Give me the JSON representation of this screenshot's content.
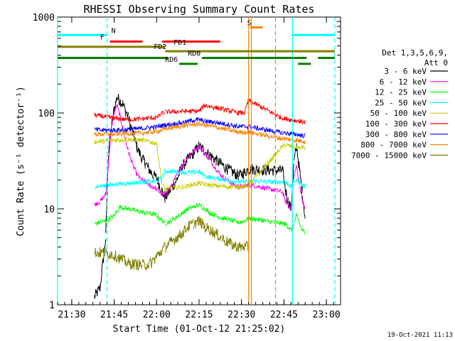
{
  "chart_data": {
    "type": "line",
    "title": "RHESSI Observing Summary Count Rates",
    "xlabel": "Start Time (01-Oct-12 21:25:02)",
    "ylabel": "Count Rate (s⁻¹ detector⁻¹)",
    "x_unit": "minutes since 21:25:02",
    "xlim": [
      0,
      100
    ],
    "ylim": [
      1,
      1000
    ],
    "y_scale": "log",
    "x_ticks": [
      {
        "x": 5,
        "label": "21:30"
      },
      {
        "x": 20,
        "label": "21:45"
      },
      {
        "x": 35,
        "label": "22:00"
      },
      {
        "x": 50,
        "label": "22:15"
      },
      {
        "x": 65,
        "label": "22:30"
      },
      {
        "x": 80,
        "label": "22:45"
      },
      {
        "x": 95,
        "label": "23:00"
      }
    ],
    "y_ticks": [
      {
        "y": 1,
        "label": "1"
      },
      {
        "y": 10,
        "label": "10"
      },
      {
        "y": 100,
        "label": "100"
      },
      {
        "y": 1000,
        "label": "1000"
      }
    ],
    "legend": {
      "header": [
        "Det 1,3,5,6,9,",
        "Att 0"
      ],
      "placement": "right",
      "entries": [
        {
          "name": "3 - 6 keV",
          "color": "#000000"
        },
        {
          "name": "6 - 12 keV",
          "color": "#ff00ff"
        },
        {
          "name": "12 - 25 keV",
          "color": "#00ff00"
        },
        {
          "name": "25 - 50 keV",
          "color": "#00ffff"
        },
        {
          "name": "50 - 100 keV",
          "color": "#cccc00"
        },
        {
          "name": "100 - 300 keV",
          "color": "#ff0000"
        },
        {
          "name": "300 - 800 keV",
          "color": "#0000ff"
        },
        {
          "name": "800 - 7000 keV",
          "color": "#ff8000"
        },
        {
          "name": "7000 - 15000 keV",
          "color": "#808000"
        }
      ]
    },
    "intervals": [
      {
        "label": "N",
        "color": "#00ffff",
        "y": 650,
        "segments": [
          [
            0,
            17.5
          ],
          [
            83,
            98
          ]
        ],
        "label_x": 19
      },
      {
        "label": "F",
        "color": "#ff0000",
        "y": 555,
        "segments": [
          [
            18.5,
            30
          ],
          [
            37,
            57.5
          ]
        ],
        "label_x": 15
      },
      {
        "label": "FD1",
        "color": "#808000",
        "y": 490,
        "segments": [
          [
            0,
            38
          ]
        ],
        "label_x": 41
      },
      {
        "label": "FD2",
        "color": "#808000",
        "y": 440,
        "segments": [
          [
            38,
            98
          ]
        ],
        "label_x": 34
      },
      {
        "label": "RD0",
        "color": "#008000",
        "y": 375,
        "segments": [
          [
            0,
            39
          ],
          [
            51,
            88
          ],
          [
            92,
            98
          ]
        ],
        "label_x": 46
      },
      {
        "label": "RD6",
        "color": "#008000",
        "y": 325,
        "segments": [
          [
            43,
            49.5
          ],
          [
            85,
            89.5
          ]
        ],
        "label_x": 38
      },
      {
        "label": "S",
        "color": "#ff8000",
        "y": 780,
        "segments": [
          [
            68,
            72.5
          ]
        ],
        "label_x": 67
      }
    ],
    "vlines": [
      {
        "x": 0,
        "color": "#00ffff",
        "style": "solid"
      },
      {
        "x": 17.5,
        "color": "#00ffff",
        "style": "dashed"
      },
      {
        "x": 67.5,
        "color": "#ff8000",
        "style": "solid"
      },
      {
        "x": 68.5,
        "color": "#ff8000",
        "style": "solid"
      },
      {
        "x": 77,
        "color": "#ff8000",
        "style": "dashed"
      },
      {
        "x": 83,
        "color": "#00ffff",
        "style": "solid"
      },
      {
        "x": 98,
        "color": "#00ffff",
        "style": "dashed"
      }
    ],
    "data_gaps": [
      [
        0,
        13
      ],
      [
        68.5,
        79.5
      ],
      [
        87.5,
        100
      ]
    ],
    "series": [
      {
        "name": "3 - 6 keV",
        "x": [
          13,
          15,
          17,
          18,
          19,
          20,
          21,
          22,
          23,
          24,
          25,
          26,
          27,
          28,
          29,
          30,
          31,
          32,
          33,
          34,
          35,
          36,
          37,
          38,
          40,
          42,
          44,
          46,
          48,
          50,
          52,
          54,
          56,
          58,
          60,
          62,
          64,
          66,
          67.5,
          79.5,
          80.5,
          81.5,
          82.5,
          83.5,
          84.5,
          85.5,
          86.5,
          87.5
        ],
        "y": [
          1.2,
          1.5,
          5,
          40,
          70,
          110,
          145,
          135,
          125,
          105,
          90,
          70,
          55,
          45,
          38,
          33,
          30,
          27,
          24,
          22,
          21,
          18,
          15,
          13,
          16,
          20,
          27,
          33,
          38,
          45,
          40,
          36,
          32,
          29,
          26,
          24,
          22,
          24,
          26,
          25,
          16,
          12,
          10,
          30,
          45,
          25,
          15,
          8
        ]
      },
      {
        "name": "6 - 12 keV",
        "x": [
          13,
          15,
          17,
          18,
          19,
          20,
          21,
          22,
          23,
          24,
          25,
          26,
          27,
          28,
          29,
          30,
          31,
          32,
          33,
          34,
          35,
          36,
          37,
          38,
          40,
          42,
          44,
          46,
          48,
          50,
          52,
          54,
          56,
          58,
          60,
          62,
          64,
          66,
          67.5,
          79.5,
          80.5,
          81.5,
          82.5,
          83.5,
          84.5,
          85.5,
          86.5,
          87.5
        ],
        "y": [
          11,
          12,
          14,
          30,
          70,
          100,
          120,
          95,
          70,
          52,
          40,
          32,
          27,
          23,
          21,
          20,
          19,
          18,
          17,
          17,
          16,
          15,
          14,
          14,
          17,
          22,
          28,
          35,
          40,
          45,
          38,
          32,
          26,
          22,
          20,
          18,
          17,
          17,
          18,
          15,
          12,
          11,
          10,
          22,
          28,
          18,
          12,
          10
        ]
      },
      {
        "name": "12 - 25 keV",
        "x": [
          13,
          17,
          20,
          22,
          25,
          28,
          30,
          32,
          34,
          35,
          37,
          38,
          40,
          42,
          44,
          46,
          48,
          50,
          52,
          54,
          56,
          58,
          60,
          62,
          64,
          66,
          67.5,
          79.5,
          80.5,
          81.5,
          82.5,
          83.5,
          84.5,
          85.5,
          86.5,
          87.5
        ],
        "y": [
          7,
          7.5,
          8.5,
          10.5,
          10,
          9.5,
          9.2,
          9,
          8.8,
          8.5,
          7.5,
          7,
          7.5,
          8.2,
          9,
          10,
          10.5,
          11,
          10,
          9,
          8.5,
          8,
          7.8,
          7.5,
          7.2,
          7.5,
          8,
          7,
          7,
          6.5,
          6,
          7,
          8.5,
          7,
          6,
          5.5
        ]
      },
      {
        "name": "25 - 50 keV",
        "x": [
          13,
          17,
          20,
          25,
          30,
          35,
          37,
          38,
          40,
          45,
          48,
          50,
          52,
          55,
          60,
          65,
          67.5,
          79.5,
          80.5,
          81.5,
          82.5,
          83.5,
          84.5,
          85.5,
          86.5,
          87.5
        ],
        "y": [
          17,
          17.5,
          18,
          18.5,
          19,
          19.5,
          21,
          25,
          24.5,
          24,
          24,
          24.5,
          22,
          21,
          20,
          19,
          19.5,
          19,
          19,
          18,
          17,
          19,
          20,
          19,
          17.5,
          17
        ]
      },
      {
        "name": "50 - 100 keV",
        "x": [
          13,
          17,
          20,
          25,
          30,
          35,
          37,
          38,
          40,
          45,
          48,
          50,
          52,
          55,
          60,
          65,
          67.5,
          79.5,
          80.5,
          81.5,
          82.5,
          83.5,
          84.5,
          85.5,
          86.5,
          87.5
        ],
        "y": [
          50,
          51,
          52,
          53,
          52,
          48,
          18,
          16,
          16.5,
          17,
          18,
          18.5,
          18,
          17.5,
          17,
          17,
          17.5,
          45,
          46,
          46,
          45,
          44,
          44,
          43,
          44,
          43
        ]
      },
      {
        "name": "100 - 300 keV",
        "x": [
          13,
          16,
          20,
          25,
          30,
          35,
          37.2,
          38,
          40,
          45,
          48,
          50,
          52,
          55,
          58,
          61,
          64,
          66,
          67.5,
          79.5,
          80.5,
          81.5,
          82.5,
          83.5,
          84.5,
          85.5,
          86.5,
          87.5
        ],
        "y": [
          95,
          92,
          88,
          85,
          87,
          90,
          100,
          102,
          103,
          104,
          104,
          105,
          120,
          115,
          110,
          105,
          100,
          100,
          135,
          88,
          87,
          86,
          85,
          84,
          83,
          82,
          81,
          80
        ]
      },
      {
        "name": "300 - 800 keV",
        "x": [
          13,
          16,
          20,
          25,
          30,
          35,
          38,
          40,
          45,
          48,
          50,
          52,
          55,
          58,
          61,
          64,
          67.5,
          79.5,
          80.5,
          81.5,
          82.5,
          83.5,
          84.5,
          85.5,
          86.5,
          87.5
        ],
        "y": [
          67,
          66,
          66,
          67,
          69,
          72,
          75,
          76,
          80,
          84,
          85,
          82,
          80,
          78,
          75,
          72,
          72,
          62,
          62,
          61,
          61,
          60,
          60,
          59,
          58,
          58
        ]
      },
      {
        "name": "800 - 7000 keV",
        "x": [
          13,
          16,
          20,
          25,
          30,
          35,
          38,
          40,
          45,
          48,
          50,
          52,
          55,
          58,
          61,
          64,
          67.5,
          79.5,
          80.5,
          81.5,
          82.5,
          83.5,
          84.5,
          85.5,
          86.5,
          87.5
        ],
        "y": [
          60,
          60,
          60,
          61,
          62,
          64,
          68,
          70,
          74,
          76,
          77,
          75,
          72,
          69,
          66,
          63,
          63,
          54,
          54,
          53,
          53,
          52,
          52,
          51,
          51,
          50
        ]
      },
      {
        "name": "7000 - 15000 keV",
        "x": [
          13,
          17,
          20,
          25,
          30,
          33,
          35,
          38,
          40,
          42,
          44,
          46,
          48,
          50,
          52,
          54,
          56,
          58,
          60,
          62,
          64,
          66,
          67.5
        ],
        "y": [
          3.5,
          3.5,
          3.3,
          2.7,
          2.6,
          2.7,
          3.2,
          4,
          4.5,
          5,
          5.5,
          6.5,
          7,
          7.5,
          6.5,
          6,
          5.5,
          5,
          4.5,
          4.2,
          4,
          4,
          4
        ]
      }
    ]
  },
  "timestamp": "19-Oct-2021 11:13"
}
